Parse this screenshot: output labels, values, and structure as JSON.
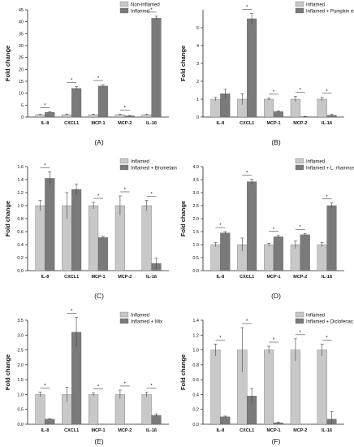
{
  "colors": {
    "control_bar": "#c8c8c8",
    "treated_bar": "#7a7a7a",
    "axis": "#222222",
    "error_bar": "#444444",
    "text": "#111111"
  },
  "chart_data": [
    {
      "type": "bar",
      "panel_label": "(A)",
      "categories": [
        "IL-8",
        "CXCL1",
        "MCP-1",
        "MCP-2",
        "IL-1ß"
      ],
      "ylabel": "Fold change",
      "ylim": [
        0,
        45
      ],
      "yticks": [
        "0",
        "5",
        "10",
        "15",
        "20",
        "25",
        "30",
        "35",
        "40",
        "45"
      ],
      "legend_position": "top-right",
      "series": [
        {
          "name": "Non-inflamed",
          "values": [
            1,
            1,
            1,
            1,
            1
          ],
          "errors": [
            0.2,
            0.3,
            0.2,
            0.2,
            0.2
          ]
        },
        {
          "name": "Inflamed",
          "values": [
            2,
            12,
            13,
            0.5,
            41.5
          ],
          "errors": [
            0.3,
            0.8,
            0.6,
            0.2,
            0.8
          ]
        }
      ],
      "significance": [
        "*",
        "*",
        "*",
        "*",
        "*"
      ]
    },
    {
      "type": "bar",
      "panel_label": "(B)",
      "categories": [
        "IL-8",
        "CXCL1",
        "MCP-1",
        "MCP-2",
        "IL-1ß"
      ],
      "ylabel": "Fold change",
      "ylim": [
        0,
        6
      ],
      "yticks": [
        "0",
        "1",
        "2",
        "3",
        "4",
        "5"
      ],
      "legend_position": "top-right",
      "series": [
        {
          "name": "Inflamed",
          "values": [
            1,
            1,
            1,
            1,
            1
          ],
          "errors": [
            0.1,
            0.3,
            0.05,
            0.15,
            0.1
          ]
        },
        {
          "name": "Inflamed + Pumpkin extract",
          "values": [
            1.3,
            5.5,
            0.3,
            0.02,
            0.1
          ],
          "errors": [
            0.25,
            0.3,
            0.05,
            0.02,
            0.05
          ]
        }
      ],
      "significance": [
        "",
        "*",
        "*",
        "*",
        "*"
      ]
    },
    {
      "type": "bar",
      "panel_label": "(C)",
      "categories": [
        "IL-8",
        "CXCL1",
        "MCP-1",
        "MCP-2",
        "IL-1ß"
      ],
      "ylabel": "Fold change",
      "ylim": [
        0,
        1.6
      ],
      "yticks": [
        "0.0",
        "0.2",
        "0.4",
        "0.6",
        "0.8",
        "1.0",
        "1.2",
        "1.4",
        "1.6"
      ],
      "legend_position": "top-right",
      "series": [
        {
          "name": "Inflamed",
          "values": [
            1,
            1,
            1,
            1,
            1
          ],
          "errors": [
            0.08,
            0.2,
            0.05,
            0.15,
            0.08
          ]
        },
        {
          "name": "Inflamed + Bromelain",
          "values": [
            1.42,
            1.25,
            0.51,
            0.0,
            0.11
          ],
          "errors": [
            0.1,
            0.08,
            0.02,
            0.0,
            0.08
          ]
        }
      ],
      "significance": [
        "*",
        "",
        "*",
        "*",
        "*"
      ]
    },
    {
      "type": "bar",
      "panel_label": "(D)",
      "categories": [
        "IL-8",
        "CXCL1",
        "MCP-1",
        "MCP-2",
        "IL-1ß"
      ],
      "ylabel": "Fold change",
      "ylim": [
        0,
        4.0
      ],
      "yticks": [
        "0.0",
        "0.5",
        "1.0",
        "1.5",
        "2.0",
        "2.5",
        "3.0",
        "3.5",
        "4.0"
      ],
      "legend_position": "top-right",
      "series": [
        {
          "name": "Inflamed",
          "values": [
            1,
            1,
            1,
            1,
            1
          ],
          "errors": [
            0.08,
            0.25,
            0.05,
            0.15,
            0.08
          ]
        },
        {
          "name": "Inflamed + L. rhamnosus",
          "values": [
            1.45,
            3.42,
            1.3,
            1.38,
            2.5
          ],
          "errors": [
            0.05,
            0.1,
            0.05,
            0.05,
            0.1
          ]
        }
      ],
      "significance": [
        "*",
        "*",
        "*",
        "*",
        "*"
      ]
    },
    {
      "type": "bar",
      "panel_label": "(E)",
      "categories": [
        "IL-8",
        "CXCL1",
        "MCP-1",
        "MCP-2",
        "IL-1ß"
      ],
      "ylabel": "Fold change",
      "ylim": [
        0,
        3.5
      ],
      "yticks": [
        "0.0",
        "0.5",
        "1.0",
        "1.5",
        "2.0",
        "2.5",
        "3.0",
        "3.5"
      ],
      "legend_position": "top-right",
      "series": [
        {
          "name": "Inflamed",
          "values": [
            1,
            1,
            1,
            1,
            1
          ],
          "errors": [
            0.08,
            0.25,
            0.05,
            0.15,
            0.08
          ]
        },
        {
          "name": "Inflamed + Mix",
          "values": [
            0.17,
            3.1,
            0.0,
            0.0,
            0.3
          ],
          "errors": [
            0.02,
            0.5,
            0.0,
            0.0,
            0.05
          ]
        }
      ],
      "significance": [
        "*",
        "*",
        "*",
        "*",
        "*"
      ]
    },
    {
      "type": "bar",
      "panel_label": "(F)",
      "categories": [
        "IL-8",
        "CXCL1",
        "MCP-1",
        "MCP-2",
        "IL-1ß"
      ],
      "ylabel": "Fold change",
      "ylim": [
        0,
        1.4
      ],
      "yticks": [
        "0.0",
        "0.2",
        "0.4",
        "0.6",
        "0.8",
        "1.0",
        "1.2",
        "1.4"
      ],
      "legend_position": "top-right",
      "series": [
        {
          "name": "Inflamed",
          "values": [
            1,
            1,
            1,
            1,
            1
          ],
          "errors": [
            0.08,
            0.3,
            0.05,
            0.15,
            0.08
          ]
        },
        {
          "name": "Inflamed + Diclofenac",
          "values": [
            0.1,
            0.38,
            0.02,
            0.0,
            0.07
          ],
          "errors": [
            0.01,
            0.1,
            0.01,
            0.0,
            0.1
          ]
        }
      ],
      "significance": [
        "*",
        "*",
        "*",
        "*",
        "*"
      ]
    }
  ]
}
